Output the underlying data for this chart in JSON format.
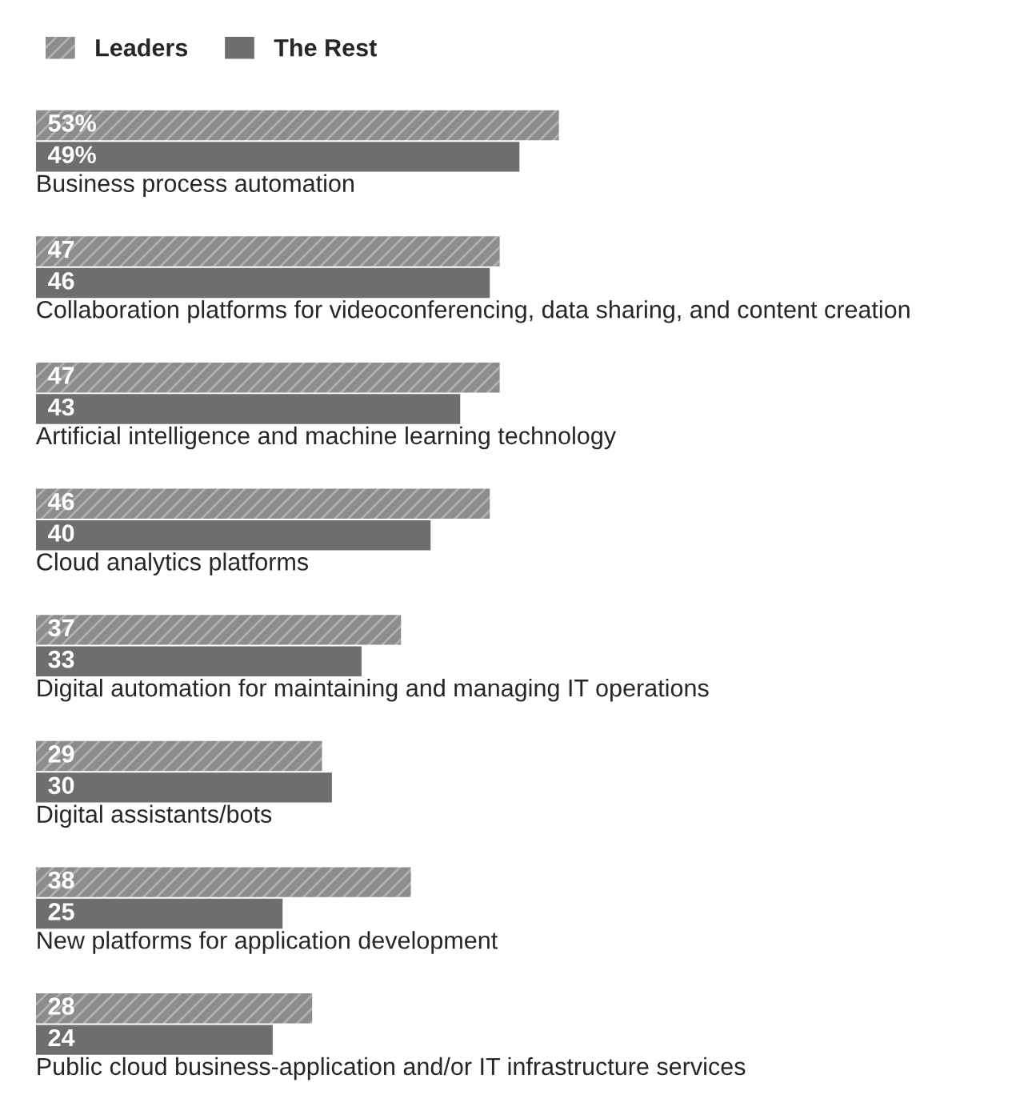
{
  "chart_data": {
    "type": "bar",
    "orientation": "horizontal",
    "categories": [
      "Business process automation",
      "Collaboration platforms for videoconferencing, data sharing, and content creation",
      "Artificial intelligence and machine learning technology",
      "Cloud analytics platforms",
      "Digital automation for maintaining and managing IT operations",
      "Digital assistants/bots",
      "New platforms for application development",
      "Public cloud business-application and/or IT infrastructure services"
    ],
    "series": [
      {
        "name": "Leaders",
        "color": "#8c8c8c",
        "values": [
          53,
          47,
          47,
          46,
          37,
          29,
          38,
          28
        ],
        "value_labels": [
          "53%",
          "47",
          "47",
          "46",
          "37",
          "29",
          "38",
          "28"
        ]
      },
      {
        "name": "The Rest",
        "color": "#6e6e6e",
        "values": [
          49,
          46,
          43,
          40,
          33,
          30,
          25,
          24
        ],
        "value_labels": [
          "49%",
          "46",
          "43",
          "40",
          "33",
          "30",
          "25",
          "24"
        ]
      }
    ],
    "legend": "top left"
  }
}
